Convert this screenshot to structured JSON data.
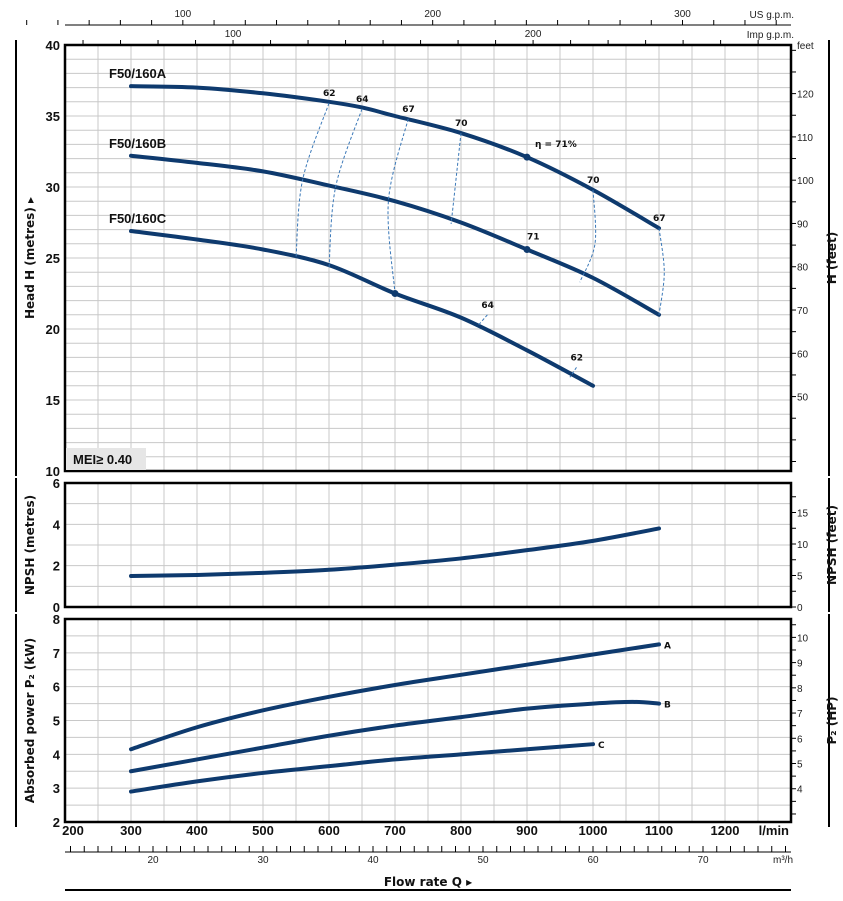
{
  "chart_data": [
    {
      "type": "line",
      "title": "Head",
      "xlabel": "Flow rate Q",
      "x_unit": "l/min",
      "xlim": [
        200,
        1300
      ],
      "x_ticks": [
        200,
        300,
        400,
        500,
        600,
        700,
        800,
        900,
        1000,
        1100,
        1200
      ],
      "ylabel": "Head H (metres)",
      "ylim": [
        10,
        40
      ],
      "y_ticks": [
        10,
        15,
        20,
        25,
        30,
        35,
        40
      ],
      "y2label": "H (feet)",
      "y2_unit": "feet",
      "y2_ticks": [
        50,
        60,
        70,
        80,
        90,
        100,
        110,
        120
      ],
      "mei_label": "MEI≥ 0.40",
      "series": [
        {
          "name": "F50/160A",
          "x": [
            300,
            400,
            500,
            600,
            650,
            700,
            800,
            900,
            1000,
            1100
          ],
          "y": [
            37.1,
            37.0,
            36.6,
            36.0,
            35.6,
            35.0,
            33.8,
            32.1,
            29.8,
            27.1
          ]
        },
        {
          "name": "F50/160B",
          "x": [
            300,
            400,
            500,
            600,
            700,
            800,
            900,
            1000,
            1100
          ],
          "y": [
            32.2,
            31.7,
            31.1,
            30.1,
            29.0,
            27.5,
            25.6,
            23.6,
            21.0
          ]
        },
        {
          "name": "F50/160C",
          "x": [
            300,
            400,
            500,
            600,
            700,
            800,
            900,
            1000
          ],
          "y": [
            26.9,
            26.3,
            25.6,
            24.5,
            22.5,
            20.8,
            18.5,
            16.0
          ]
        }
      ],
      "efficiency_lines": [
        {
          "label": "62",
          "x": [
            600,
            560,
            550
          ],
          "y": [
            35.9,
            30.5,
            25.0
          ]
        },
        {
          "label": "64",
          "x": [
            650,
            610,
            600
          ],
          "y": [
            35.5,
            30.0,
            24.3
          ]
        },
        {
          "label": "67",
          "x": [
            720,
            690,
            700
          ],
          "y": [
            34.8,
            29.0,
            22.5
          ]
        },
        {
          "label": "70",
          "x": [
            800,
            790,
            785
          ],
          "y": [
            33.8,
            29.5,
            27.4
          ]
        },
        {
          "label": "70",
          "x": [
            1000,
            1003,
            980
          ],
          "y": [
            29.8,
            26.0,
            23.3
          ]
        },
        {
          "label": "67",
          "x": [
            1100,
            1108,
            1100
          ],
          "y": [
            27.1,
            24.0,
            21.0
          ]
        },
        {
          "label": "64",
          "x": [
            840,
            825
          ],
          "y": [
            21.0,
            20.2
          ]
        },
        {
          "label": "62",
          "x": [
            975,
            965
          ],
          "y": [
            17.3,
            16.6
          ]
        }
      ],
      "efficiency_points": [
        {
          "label": "η = 71%",
          "x": 900,
          "y": 32.1
        },
        {
          "label": "71",
          "x": 900,
          "y": 25.6
        },
        {
          "label": "",
          "x": 700,
          "y": 22.5
        }
      ],
      "top_scales": [
        {
          "unit": "US g.p.m.",
          "labels": [
            100,
            200,
            300
          ]
        },
        {
          "unit": "Imp g.p.m.",
          "labels": [
            100,
            200
          ]
        }
      ],
      "bottom_scale": {
        "unit": "m³/h",
        "labels": [
          20,
          30,
          40,
          50,
          60,
          70
        ]
      }
    },
    {
      "type": "line",
      "title": "NPSH",
      "ylabel": "NPSH (metres)",
      "ylim": [
        0,
        6
      ],
      "y_ticks": [
        0,
        2,
        4,
        6
      ],
      "y2label": "NPSH (feet)",
      "y2_ticks": [
        0,
        5,
        10,
        15
      ],
      "series": [
        {
          "name": "NPSH",
          "x": [
            300,
            400,
            500,
            600,
            700,
            800,
            900,
            1000,
            1100
          ],
          "y": [
            1.5,
            1.55,
            1.65,
            1.8,
            2.05,
            2.35,
            2.75,
            3.2,
            3.8
          ]
        }
      ]
    },
    {
      "type": "line",
      "title": "Absorbed power",
      "ylabel": "Absorbed power P₂ (kW)",
      "ylim": [
        2,
        8
      ],
      "y_ticks": [
        2,
        3,
        4,
        5,
        6,
        7,
        8
      ],
      "y2label": "P₂ (HP)",
      "y2_ticks": [
        4,
        5,
        6,
        7,
        8,
        9,
        10
      ],
      "series": [
        {
          "name": "A",
          "x": [
            300,
            400,
            500,
            600,
            700,
            800,
            900,
            1000,
            1100
          ],
          "y": [
            4.15,
            4.8,
            5.3,
            5.7,
            6.05,
            6.35,
            6.65,
            6.95,
            7.25
          ]
        },
        {
          "name": "B",
          "x": [
            300,
            400,
            500,
            600,
            700,
            800,
            900,
            1000,
            1060,
            1100
          ],
          "y": [
            3.5,
            3.85,
            4.2,
            4.55,
            4.85,
            5.1,
            5.35,
            5.5,
            5.55,
            5.5
          ]
        },
        {
          "name": "C",
          "x": [
            300,
            400,
            500,
            600,
            700,
            800,
            900,
            1000
          ],
          "y": [
            2.9,
            3.2,
            3.45,
            3.65,
            3.85,
            4.0,
            4.15,
            4.3
          ]
        }
      ]
    }
  ],
  "colors": {
    "curve": "#0e3a6e",
    "grid": "#c8c8c8",
    "dash": "#3a78b8",
    "mei_bg": "#e6e6e6"
  },
  "arrow": "▸"
}
